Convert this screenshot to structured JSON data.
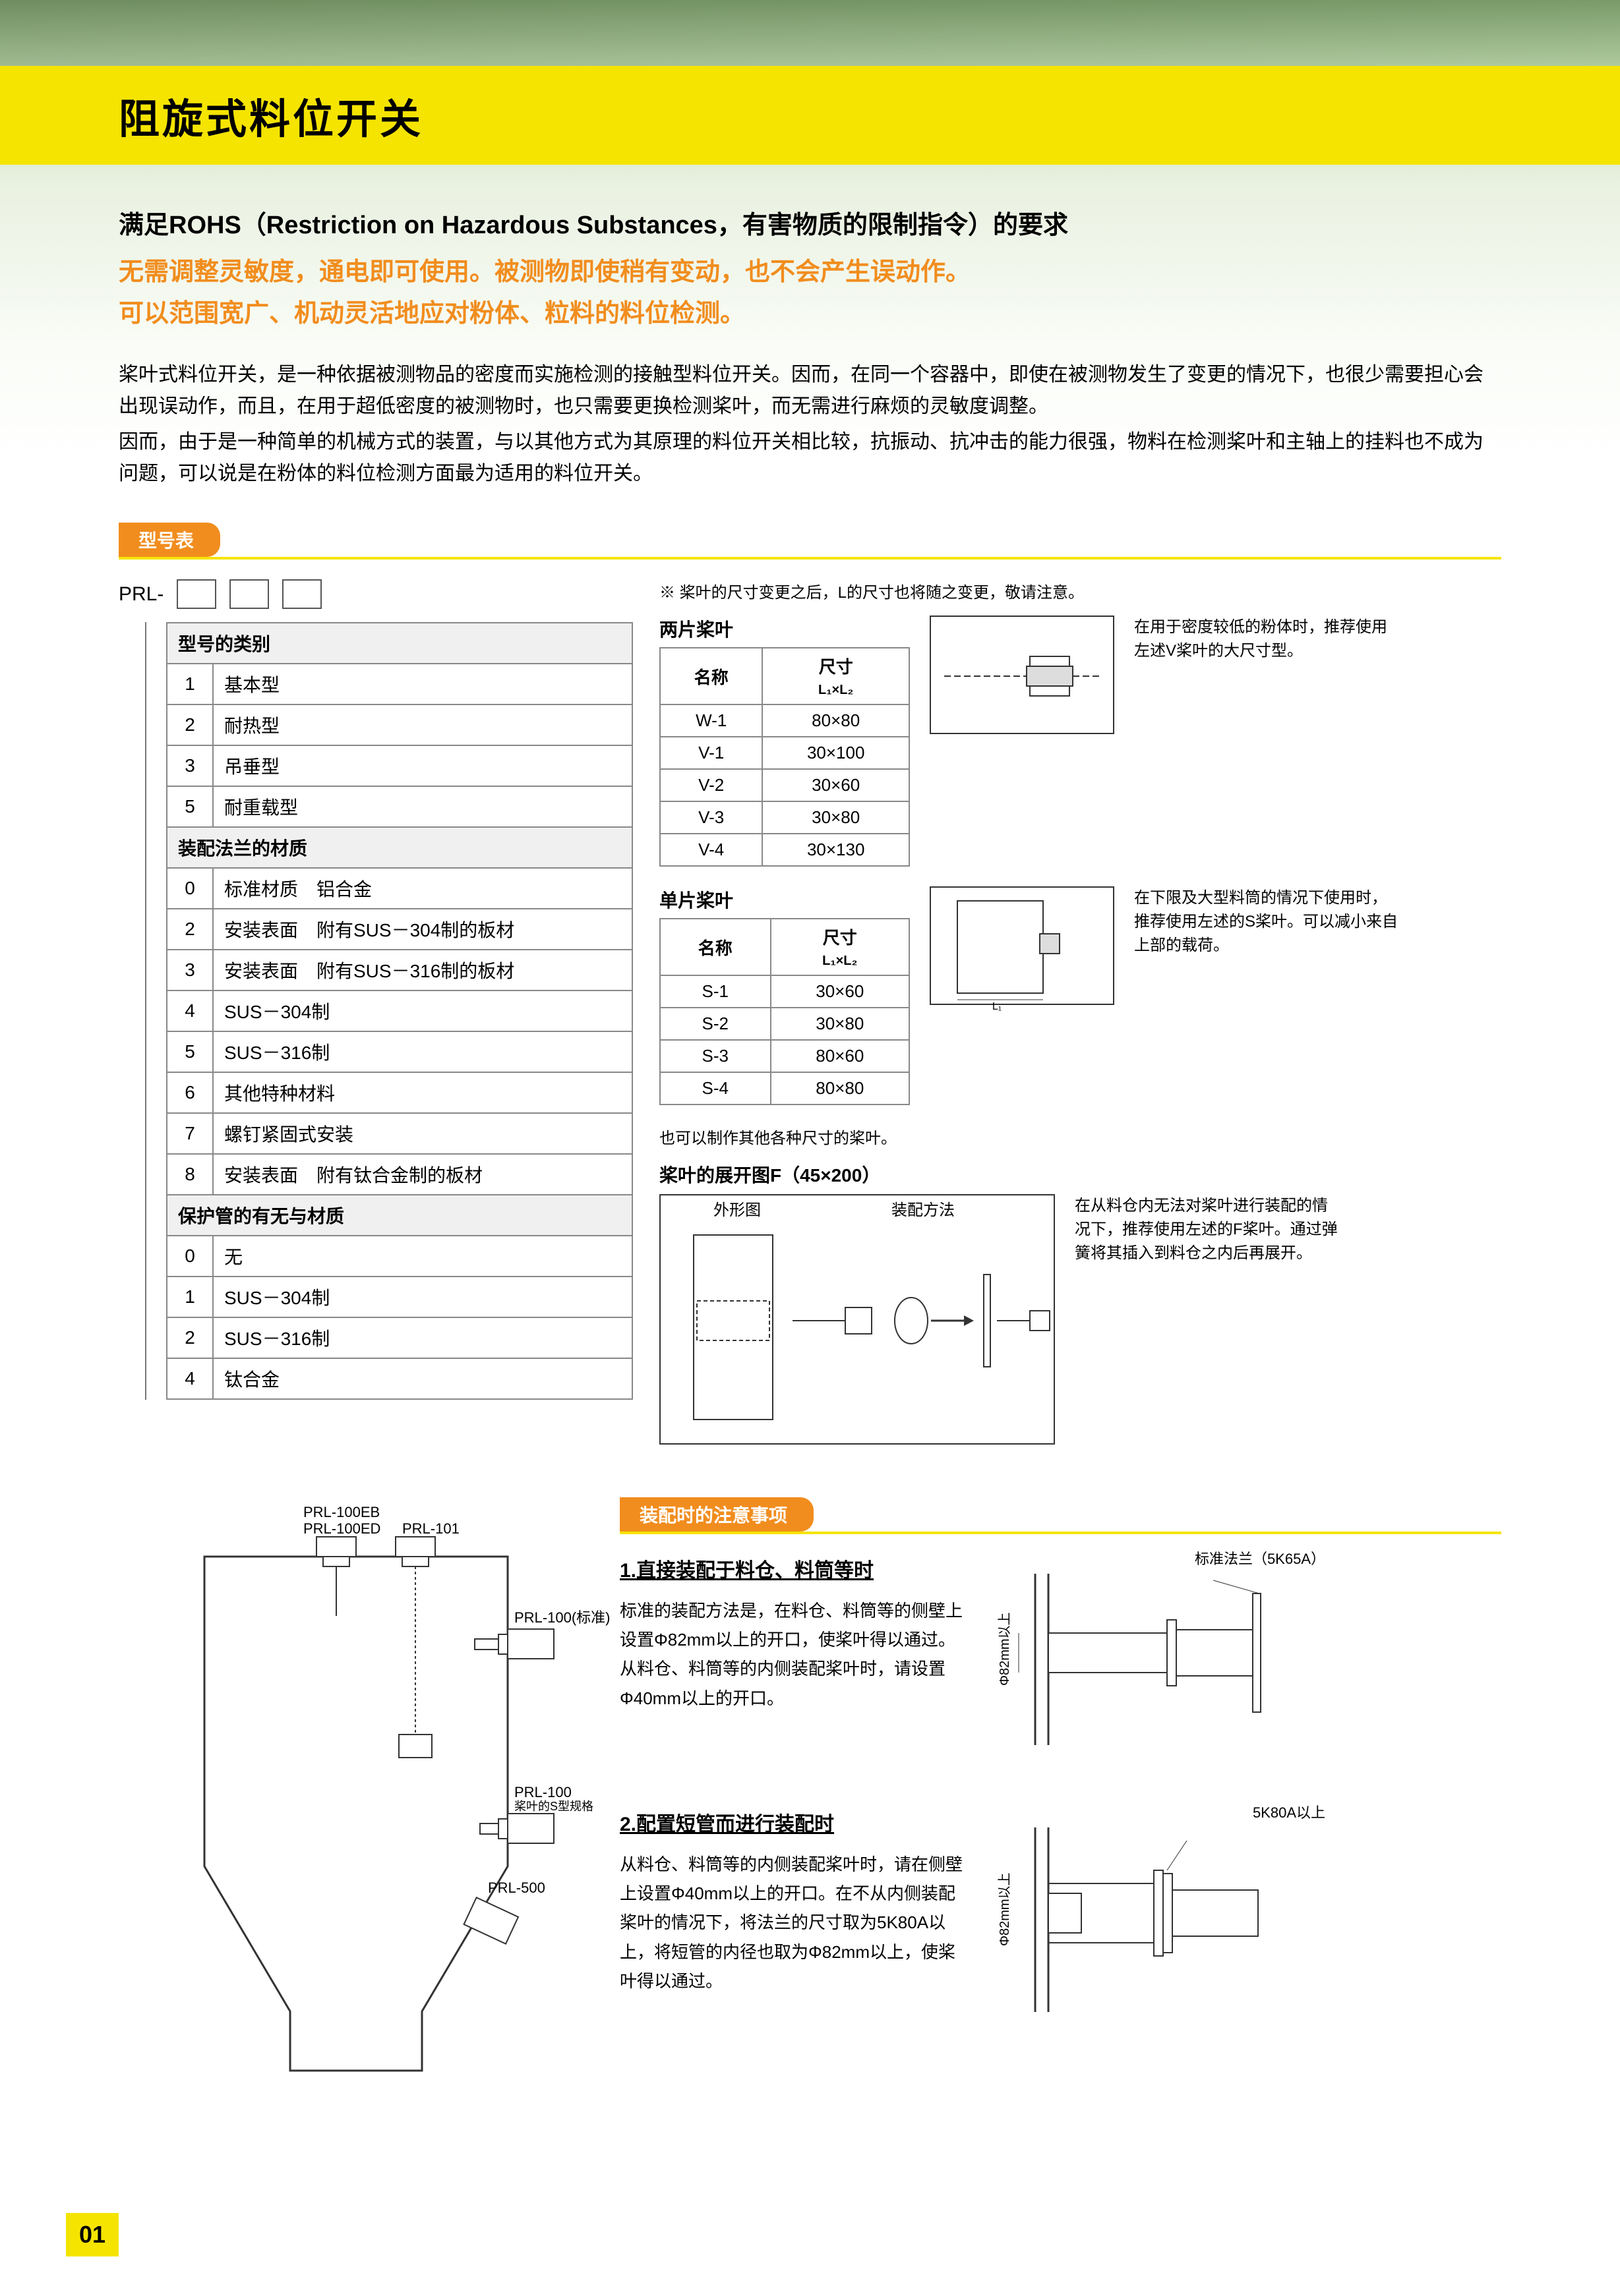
{
  "title": "阻旋式料位开关",
  "rohs": "满足ROHS（Restriction on Hazardous Substances，有害物质的限制指令）的要求",
  "orange1": "无需调整灵敏度，通电即可使用。被测物即使稍有变动，也不会产生误动作。",
  "orange2": "可以范围宽广、机动灵活地应对粉体、粒料的料位检测。",
  "body1": "桨叶式料位开关，是一种依据被测物品的密度而实施检测的接触型料位开关。因而，在同一个容器中，即使在被测物发生了变更的情况下，也很少需要担心会出现误动作，而且，在用于超低密度的被测物时，也只需要更换检测桨叶，而无需进行麻烦的灵敏度调整。",
  "body2": "因而，由于是一种简单的机械方式的装置，与以其他方式为其原理的料位开关相比较，抗振动、抗冲击的能力很强，物料在检测桨叶和主轴上的挂料也不成为问题，可以说是在粉体的料位检测方面最为适用的料位开关。",
  "section_model": "型号表",
  "prl_prefix": "PRL-",
  "note_star": "※ 桨叶的尺寸变更之后，L的尺寸也将随之变更，敬请注意。",
  "category_header": "型号的类别",
  "categories": [
    {
      "code": "1",
      "name": "基本型"
    },
    {
      "code": "2",
      "name": "耐热型"
    },
    {
      "code": "3",
      "name": "吊垂型"
    },
    {
      "code": "5",
      "name": "耐重载型"
    }
  ],
  "flange_header": "装配法兰的材质",
  "flanges": [
    {
      "code": "0",
      "name": "标准材质　铝合金"
    },
    {
      "code": "2",
      "name": "安装表面　附有SUS－304制的板材"
    },
    {
      "code": "3",
      "name": "安装表面　附有SUS－316制的板材"
    },
    {
      "code": "4",
      "name": "SUS－304制"
    },
    {
      "code": "5",
      "name": "SUS－316制"
    },
    {
      "code": "6",
      "name": "其他特种材料"
    },
    {
      "code": "7",
      "name": "螺钉紧固式安装"
    },
    {
      "code": "8",
      "name": "安装表面　附有钛合金制的板材"
    }
  ],
  "tube_header": "保护管的有无与材质",
  "tubes": [
    {
      "code": "0",
      "name": "无"
    },
    {
      "code": "1",
      "name": "SUS－304制"
    },
    {
      "code": "2",
      "name": "SUS－316制"
    },
    {
      "code": "4",
      "name": "钛合金"
    }
  ],
  "two_blade_title": "两片桨叶",
  "blade_col_name": "名称",
  "blade_col_size": "尺寸",
  "blade_col_size_sub": "L₁×L₂",
  "two_blades": [
    {
      "name": "W-1",
      "size": "80×80"
    },
    {
      "name": "V-1",
      "size": "30×100"
    },
    {
      "name": "V-2",
      "size": "30×60"
    },
    {
      "name": "V-3",
      "size": "30×80"
    },
    {
      "name": "V-4",
      "size": "30×130"
    }
  ],
  "two_blade_note": "在用于密度较低的粉体时，推荐使用左述V桨叶的大尺寸型。",
  "one_blade_title": "单片桨叶",
  "one_blades": [
    {
      "name": "S-1",
      "size": "30×60"
    },
    {
      "name": "S-2",
      "size": "30×80"
    },
    {
      "name": "S-3",
      "size": "80×60"
    },
    {
      "name": "S-4",
      "size": "80×80"
    }
  ],
  "one_blade_note": "在下限及大型料筒的情况下使用时，推荐使用左述的S桨叶。可以减小来自上部的载荷。",
  "custom_note": "也可以制作其他各种尺寸的桨叶。",
  "expand_title": "桨叶的展开图F（45×200）",
  "expand_label1": "外形图",
  "expand_label2": "装配方法",
  "expand_note": "在从料仓内无法对桨叶进行装配的情况下，推荐使用左述的F桨叶。通过弹簧将其插入到料仓之内后再展开。",
  "section_install": "装配时的注意事项",
  "silo_labels": {
    "l1": "PRL-100EB",
    "l2": "PRL-100ED",
    "l3": "PRL-101",
    "l4": "PRL-100(标准)",
    "l5": "PRL-100",
    "l5b": "桨叶的S型规格",
    "l6": "PRL-500"
  },
  "install1_h": "1.直接装配于料仓、料筒等时",
  "install1_p": "标准的装配方法是，在料仓、料筒等的侧壁上设置Φ82mm以上的开口，使桨叶得以通过。从料仓、料筒等的内侧装配桨叶时，请设置Φ40mm以上的开口。",
  "install1_flange": "标准法兰（5K65A）",
  "install1_dim": "Φ82mm以上",
  "install2_h": "2.配置短管而进行装配时",
  "install2_p": "从料仓、料筒等的内侧装配桨叶时，请在侧壁上设置Φ40mm以上的开口。在不从内侧装配桨叶的情况下，将法兰的尺寸取为5K80A以上，将短管的内径也取为Φ82mm以上，使桨叶得以通过。",
  "install2_flange": "5K80A以上",
  "install2_dim": "Φ82mm以上",
  "page_number": "01",
  "colors": {
    "yellow": "#f5e400",
    "orange": "#f18d1e",
    "border": "#888888"
  }
}
